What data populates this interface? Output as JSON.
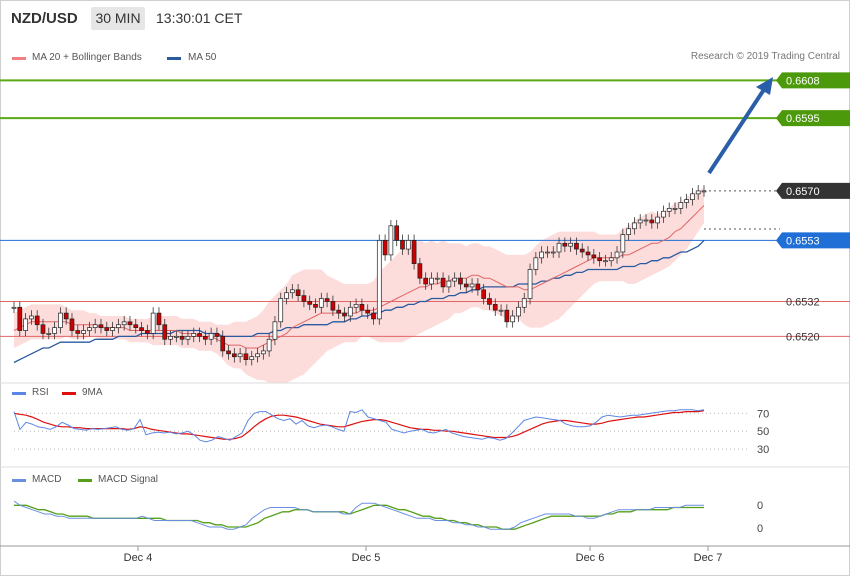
{
  "header": {
    "symbol": "NZD/USD",
    "timeframe": "30 MIN",
    "time": "13:30:01 CET"
  },
  "legend_main": {
    "ma20": "MA 20 + Bollinger Bands",
    "ma50": "MA 50",
    "copyright": "Research © 2019 Trading Central"
  },
  "legend_rsi": {
    "rsi": "RSI",
    "ma": "9MA"
  },
  "legend_macd": {
    "macd": "MACD",
    "signal": "MACD Signal"
  },
  "colors": {
    "green": "#4c9a0c",
    "red": "#e06666",
    "blue": "#2a5aa0",
    "band_fill": "#fdd6d6",
    "up_candle": "#ffffff",
    "down_candle": "#cc0000",
    "resistance": "#5aa915",
    "current_bg": "#333333",
    "ma50_bg": "#1f6fd6",
    "rsi": "#5b86e5",
    "rsi_ma": "#dd1111",
    "macd": "#6a8fe0",
    "signal": "#55a01a",
    "arrow": "#2a5ea8"
  },
  "chart_data": [
    {
      "type": "line",
      "title": "NZD/USD",
      "timeframe": "30 MIN",
      "price_range": [
        0.6505,
        0.6615
      ],
      "x_labels": [
        "Dec 4",
        "Dec 5",
        "Dec 6",
        "Dec 7"
      ],
      "levels": [
        {
          "name": "resistance",
          "value": 0.6608,
          "label": "0.6608"
        },
        {
          "name": "resistance",
          "value": 0.6595,
          "label": "0.6595"
        },
        {
          "name": "current",
          "value": 0.657,
          "label": "0.6570"
        },
        {
          "name": "ma50",
          "value": 0.6553,
          "label": "0.6553"
        },
        {
          "name": "support",
          "value": 0.6532,
          "label": "0.6532"
        },
        {
          "name": "support",
          "value": 0.652,
          "label": "0.6520"
        }
      ],
      "close": [
        0.653,
        0.6522,
        0.6526,
        0.6527,
        0.6524,
        0.6521,
        0.6521,
        0.6523,
        0.6528,
        0.6526,
        0.6522,
        0.6521,
        0.6522,
        0.6523,
        0.6524,
        0.6523,
        0.6522,
        0.6523,
        0.6524,
        0.6525,
        0.6524,
        0.6523,
        0.6522,
        0.6521,
        0.6528,
        0.6524,
        0.6519,
        0.652,
        0.652,
        0.6519,
        0.652,
        0.6521,
        0.652,
        0.6519,
        0.6521,
        0.652,
        0.6515,
        0.6514,
        0.6513,
        0.6514,
        0.6512,
        0.6513,
        0.6514,
        0.6515,
        0.6519,
        0.6525,
        0.6533,
        0.6535,
        0.6536,
        0.6534,
        0.6532,
        0.6531,
        0.653,
        0.6533,
        0.6532,
        0.6529,
        0.6528,
        0.6527,
        0.653,
        0.6531,
        0.6529,
        0.6528,
        0.6526,
        0.6553,
        0.6548,
        0.6558,
        0.6553,
        0.655,
        0.6553,
        0.6545,
        0.654,
        0.6538,
        0.654,
        0.654,
        0.6537,
        0.6539,
        0.654,
        0.6538,
        0.6537,
        0.6538,
        0.6536,
        0.6533,
        0.6531,
        0.6529,
        0.6529,
        0.6525,
        0.6527,
        0.653,
        0.6533,
        0.6543,
        0.6547,
        0.6549,
        0.6549,
        0.6549,
        0.6552,
        0.6551,
        0.6552,
        0.655,
        0.6549,
        0.6548,
        0.6547,
        0.6546,
        0.6546,
        0.6547,
        0.6549,
        0.6555,
        0.6557,
        0.6559,
        0.656,
        0.656,
        0.6559,
        0.6561,
        0.6563,
        0.6564,
        0.6564,
        0.6566,
        0.6567,
        0.6569,
        0.657,
        0.657
      ],
      "ma20": [
        0.6522,
        0.6523,
        0.6524,
        0.6525,
        0.6525,
        0.6525,
        0.6525,
        0.6525,
        0.6525,
        0.6525,
        0.6524,
        0.6524,
        0.6524,
        0.6524,
        0.6524,
        0.6523,
        0.6523,
        0.6523,
        0.6523,
        0.6523,
        0.6522,
        0.6522,
        0.6522,
        0.6522,
        0.6522,
        0.6522,
        0.6522,
        0.6522,
        0.6522,
        0.6521,
        0.6521,
        0.6521,
        0.652,
        0.652,
        0.652,
        0.6519,
        0.6518,
        0.6517,
        0.6517,
        0.6517,
        0.6516,
        0.6516,
        0.6516,
        0.6517,
        0.6518,
        0.6519,
        0.652,
        0.6521,
        0.6523,
        0.6524,
        0.6525,
        0.6526,
        0.6527,
        0.6528,
        0.6528,
        0.6528,
        0.6528,
        0.6528,
        0.6528,
        0.6528,
        0.6529,
        0.6529,
        0.6529,
        0.653,
        0.6531,
        0.6532,
        0.6533,
        0.6534,
        0.6535,
        0.6536,
        0.6537,
        0.6537,
        0.6538,
        0.6538,
        0.6539,
        0.6539,
        0.654,
        0.654,
        0.654,
        0.6541,
        0.6541,
        0.654,
        0.654,
        0.6539,
        0.6538,
        0.6537,
        0.6537,
        0.6537,
        0.6536,
        0.6536,
        0.6537,
        0.6538,
        0.6539,
        0.654,
        0.6541,
        0.6542,
        0.6543,
        0.6544,
        0.6545,
        0.6546,
        0.6547,
        0.6547,
        0.6547,
        0.6547,
        0.6547,
        0.6548,
        0.6548,
        0.6549,
        0.655,
        0.6551,
        0.6552,
        0.6552,
        0.6553,
        0.6554,
        0.6556,
        0.6557,
        0.6559,
        0.6561,
        0.6563,
        0.6565
      ],
      "ma50": [
        0.6511,
        0.6512,
        0.6513,
        0.6514,
        0.6515,
        0.6516,
        0.6516,
        0.6517,
        0.6518,
        0.6518,
        0.6518,
        0.6518,
        0.6518,
        0.6518,
        0.6519,
        0.6519,
        0.6519,
        0.6519,
        0.652,
        0.652,
        0.652,
        0.652,
        0.6521,
        0.6521,
        0.6521,
        0.6521,
        0.6521,
        0.6521,
        0.6522,
        0.6522,
        0.6522,
        0.6522,
        0.6522,
        0.6521,
        0.6521,
        0.6521,
        0.652,
        0.652,
        0.652,
        0.652,
        0.652,
        0.652,
        0.6521,
        0.6521,
        0.6521,
        0.6522,
        0.6522,
        0.6523,
        0.6523,
        0.6523,
        0.6524,
        0.6524,
        0.6524,
        0.6524,
        0.6524,
        0.6525,
        0.6525,
        0.6525,
        0.6526,
        0.6526,
        0.6527,
        0.6527,
        0.6528,
        0.6528,
        0.6529,
        0.6529,
        0.653,
        0.653,
        0.6531,
        0.6531,
        0.6532,
        0.6532,
        0.6533,
        0.6533,
        0.6533,
        0.6534,
        0.6534,
        0.6535,
        0.6535,
        0.6536,
        0.6536,
        0.6537,
        0.6537,
        0.6537,
        0.6537,
        0.6537,
        0.6537,
        0.6538,
        0.6538,
        0.6538,
        0.6538,
        0.6539,
        0.6539,
        0.654,
        0.654,
        0.6541,
        0.6541,
        0.6542,
        0.6542,
        0.6543,
        0.6543,
        0.6543,
        0.6543,
        0.6543,
        0.6543,
        0.6544,
        0.6544,
        0.6544,
        0.6545,
        0.6545,
        0.6546,
        0.6546,
        0.6547,
        0.6547,
        0.6548,
        0.6549,
        0.6549,
        0.655,
        0.6551,
        0.6553
      ],
      "band_width": [
        0.0006,
        0.0006,
        0.0006,
        0.0006,
        0.0006,
        0.0006,
        0.0006,
        0.0006,
        0.0006,
        0.0005,
        0.0005,
        0.0005,
        0.0005,
        0.0004,
        0.0004,
        0.0004,
        0.0004,
        0.0004,
        0.0004,
        0.0004,
        0.0004,
        0.0004,
        0.0004,
        0.0004,
        0.0005,
        0.0005,
        0.0005,
        0.0005,
        0.0005,
        0.0005,
        0.0005,
        0.0005,
        0.0005,
        0.0005,
        0.0005,
        0.0005,
        0.0006,
        0.0007,
        0.0008,
        0.0008,
        0.0009,
        0.001,
        0.0011,
        0.0012,
        0.0014,
        0.0015,
        0.0016,
        0.0017,
        0.0018,
        0.0018,
        0.0018,
        0.0017,
        0.0016,
        0.0015,
        0.0013,
        0.0012,
        0.0011,
        0.001,
        0.001,
        0.001,
        0.0009,
        0.0009,
        0.001,
        0.0012,
        0.0013,
        0.0014,
        0.0015,
        0.0016,
        0.0016,
        0.0016,
        0.0016,
        0.0015,
        0.0015,
        0.0014,
        0.0014,
        0.0013,
        0.0012,
        0.0012,
        0.0011,
        0.0011,
        0.0011,
        0.0011,
        0.0011,
        0.0011,
        0.0011,
        0.0011,
        0.0011,
        0.0011,
        0.0012,
        0.0013,
        0.0014,
        0.0015,
        0.0015,
        0.0015,
        0.0015,
        0.0014,
        0.0013,
        0.0012,
        0.0011,
        0.001,
        0.0009,
        0.0008,
        0.0008,
        0.0008,
        0.0008,
        0.0009,
        0.001,
        0.0011,
        0.0011,
        0.0011,
        0.0011,
        0.001,
        0.001,
        0.001,
        0.001,
        0.0009,
        0.0009,
        0.0008,
        0.0007,
        0.0006
      ]
    },
    {
      "type": "line",
      "title": "RSI",
      "y_ticks": [
        "70",
        "50",
        "30"
      ],
      "ylim": [
        20,
        85
      ],
      "rsi": [
        72,
        52,
        60,
        58,
        55,
        54,
        52,
        55,
        60,
        57,
        53,
        52,
        51,
        53,
        52,
        53,
        54,
        55,
        52,
        51,
        53,
        63,
        46,
        48,
        49,
        48,
        49,
        47,
        48,
        50,
        46,
        40,
        38,
        40,
        44,
        42,
        40,
        44,
        48,
        62,
        70,
        72,
        72,
        68,
        64,
        62,
        64,
        58,
        62,
        56,
        54,
        56,
        57,
        55,
        52,
        50,
        72,
        71,
        74,
        66,
        64,
        62,
        60,
        52,
        50,
        48,
        50,
        51,
        52,
        49,
        48,
        50,
        52,
        48,
        46,
        44,
        43,
        42,
        41,
        43,
        42,
        40,
        42,
        48,
        55,
        62,
        64,
        66,
        65,
        64,
        63,
        62,
        58,
        56,
        55,
        55,
        56,
        60,
        66,
        68,
        67,
        66,
        67,
        68,
        68,
        69,
        70,
        71,
        72,
        73,
        73,
        74,
        74,
        74,
        73,
        74
      ],
      "ma9": [
        70,
        69,
        68,
        66,
        63,
        60,
        58,
        56,
        55,
        55,
        54,
        54,
        53,
        53,
        53,
        53,
        53,
        53,
        53,
        52,
        53,
        55,
        54,
        52,
        51,
        50,
        49,
        48,
        47,
        47,
        46,
        45,
        44,
        43,
        42,
        41,
        41,
        42,
        44,
        49,
        55,
        60,
        64,
        67,
        68,
        68,
        67,
        66,
        64,
        62,
        60,
        58,
        57,
        56,
        55,
        55,
        57,
        59,
        61,
        62,
        63,
        63,
        62,
        60,
        58,
        56,
        54,
        53,
        52,
        52,
        51,
        51,
        50,
        50,
        49,
        48,
        47,
        46,
        45,
        44,
        43,
        43,
        43,
        44,
        46,
        49,
        52,
        55,
        58,
        60,
        61,
        62,
        62,
        61,
        60,
        59,
        58,
        58,
        59,
        61,
        62,
        63,
        64,
        65,
        66,
        66,
        67,
        68,
        69,
        70,
        71,
        71,
        72,
        72,
        72,
        73
      ]
    },
    {
      "type": "line",
      "title": "MACD",
      "y_ticks": [
        "0",
        "0"
      ],
      "ylim": [
        -0.0014,
        0.001
      ],
      "macd": [
        0.0004,
        0.0002,
        0.0001,
        -0.0,
        -0.0001,
        -0.0002,
        -0.0002,
        -0.0003,
        -0.0003,
        -0.0004,
        -0.0004,
        -0.0004,
        -0.0004,
        -0.0004,
        -0.0004,
        -0.0004,
        -0.0004,
        -0.0004,
        -0.0004,
        -0.0004,
        -0.0004,
        -0.0003,
        -0.0004,
        -0.0005,
        -0.0005,
        -0.0005,
        -0.0005,
        -0.0005,
        -0.0005,
        -0.0005,
        -0.0006,
        -0.0007,
        -0.0008,
        -0.0008,
        -0.0008,
        -0.0009,
        -0.0009,
        -0.0008,
        -0.0007,
        -0.0004,
        -0.0002,
        0.0,
        0.0001,
        0.0001,
        0.0001,
        0.0001,
        0.0001,
        0.0,
        -0.0,
        -0.0001,
        -0.0001,
        -0.0001,
        -0.0001,
        -0.0001,
        -0.0002,
        -0.0002,
        0.0001,
        0.0003,
        0.0003,
        0.0003,
        0.0002,
        0.0001,
        0.0,
        -0.0001,
        -0.0002,
        -0.0003,
        -0.0004,
        -0.0004,
        -0.0004,
        -0.0005,
        -0.0005,
        -0.0005,
        -0.0006,
        -0.0006,
        -0.0007,
        -0.0007,
        -0.0008,
        -0.0008,
        -0.0009,
        -0.0009,
        -0.0009,
        -0.0009,
        -0.0008,
        -0.0006,
        -0.0005,
        -0.0004,
        -0.0003,
        -0.0002,
        -0.0002,
        -0.0002,
        -0.0002,
        -0.0002,
        -0.0003,
        -0.0003,
        -0.0004,
        -0.0004,
        -0.0003,
        -0.0002,
        -0.0001,
        -0.0,
        -0.0,
        -0.0,
        0.0,
        0.0,
        0.0,
        0.0001,
        0.0001,
        0.0001,
        0.0001,
        0.0001,
        0.0002,
        0.0002,
        0.0002,
        0.0002
      ],
      "signal": [
        0.0002,
        0.0002,
        0.0002,
        0.0001,
        0.0,
        -0.0,
        -0.0001,
        -0.0002,
        -0.0002,
        -0.0003,
        -0.0003,
        -0.0003,
        -0.0003,
        -0.0004,
        -0.0004,
        -0.0004,
        -0.0004,
        -0.0004,
        -0.0004,
        -0.0004,
        -0.0004,
        -0.0004,
        -0.0004,
        -0.0004,
        -0.0004,
        -0.0005,
        -0.0005,
        -0.0005,
        -0.0005,
        -0.0005,
        -0.0005,
        -0.0006,
        -0.0006,
        -0.0007,
        -0.0007,
        -0.0008,
        -0.0008,
        -0.0008,
        -0.0008,
        -0.0007,
        -0.0006,
        -0.0004,
        -0.0003,
        -0.0002,
        -0.0001,
        -0.0001,
        -0.0,
        -0.0,
        -0.0,
        -0.0001,
        -0.0001,
        -0.0001,
        -0.0001,
        -0.0001,
        -0.0001,
        -0.0002,
        -0.0001,
        -0.0,
        0.0001,
        0.0002,
        0.0002,
        0.0002,
        0.0001,
        0.0,
        -0.0,
        -0.0001,
        -0.0002,
        -0.0003,
        -0.0003,
        -0.0004,
        -0.0004,
        -0.0005,
        -0.0005,
        -0.0006,
        -0.0006,
        -0.0007,
        -0.0007,
        -0.0008,
        -0.0008,
        -0.0008,
        -0.0009,
        -0.0009,
        -0.0009,
        -0.0008,
        -0.0007,
        -0.0006,
        -0.0005,
        -0.0004,
        -0.0003,
        -0.0003,
        -0.0003,
        -0.0003,
        -0.0003,
        -0.0003,
        -0.0003,
        -0.0003,
        -0.0003,
        -0.0002,
        -0.0002,
        -0.0001,
        -0.0001,
        -0.0001,
        -0.0,
        -0.0,
        -0.0,
        0.0,
        0.0,
        0.0,
        0.0001,
        0.0001,
        0.0001,
        0.0001,
        0.0001,
        0.0001
      ]
    }
  ]
}
